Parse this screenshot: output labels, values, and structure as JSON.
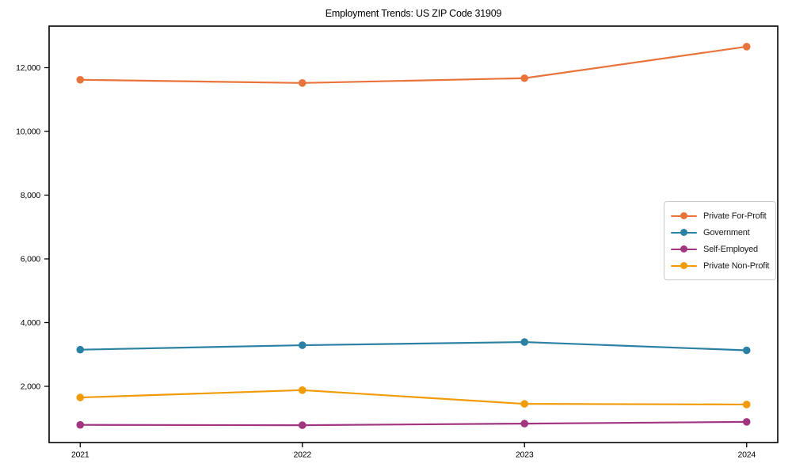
{
  "chart_data": {
    "type": "line",
    "title": "Employment Trends: US ZIP Code 31909",
    "x": [
      2021,
      2022,
      2023,
      2024
    ],
    "x_tick_labels": [
      "2021",
      "2022",
      "2023",
      "2024"
    ],
    "series": [
      {
        "name": "Private For-Profit",
        "color": "#e8743b",
        "values": [
          11620,
          11520,
          11670,
          12660
        ]
      },
      {
        "name": "Government",
        "color": "#2b81a3",
        "values": [
          3150,
          3290,
          3390,
          3130
        ]
      },
      {
        "name": "Self-Employed",
        "color": "#a23580",
        "values": [
          790,
          780,
          830,
          885
        ]
      },
      {
        "name": "Private Non-Profit",
        "color": "#f09b07",
        "values": [
          1650,
          1880,
          1450,
          1430
        ]
      }
    ],
    "yticks": [
      2000,
      4000,
      6000,
      8000,
      10000,
      12000
    ],
    "ytick_labels": [
      "2,000",
      "4,000",
      "6,000",
      "8,000",
      "10,000",
      "12,000"
    ],
    "ylim": [
      236,
      13304
    ],
    "xlim": [
      2020.86,
      2024.14
    ],
    "xlabel": "",
    "ylabel": "",
    "grid": false,
    "legend_position": "center right",
    "axis_color": "#000000"
  }
}
